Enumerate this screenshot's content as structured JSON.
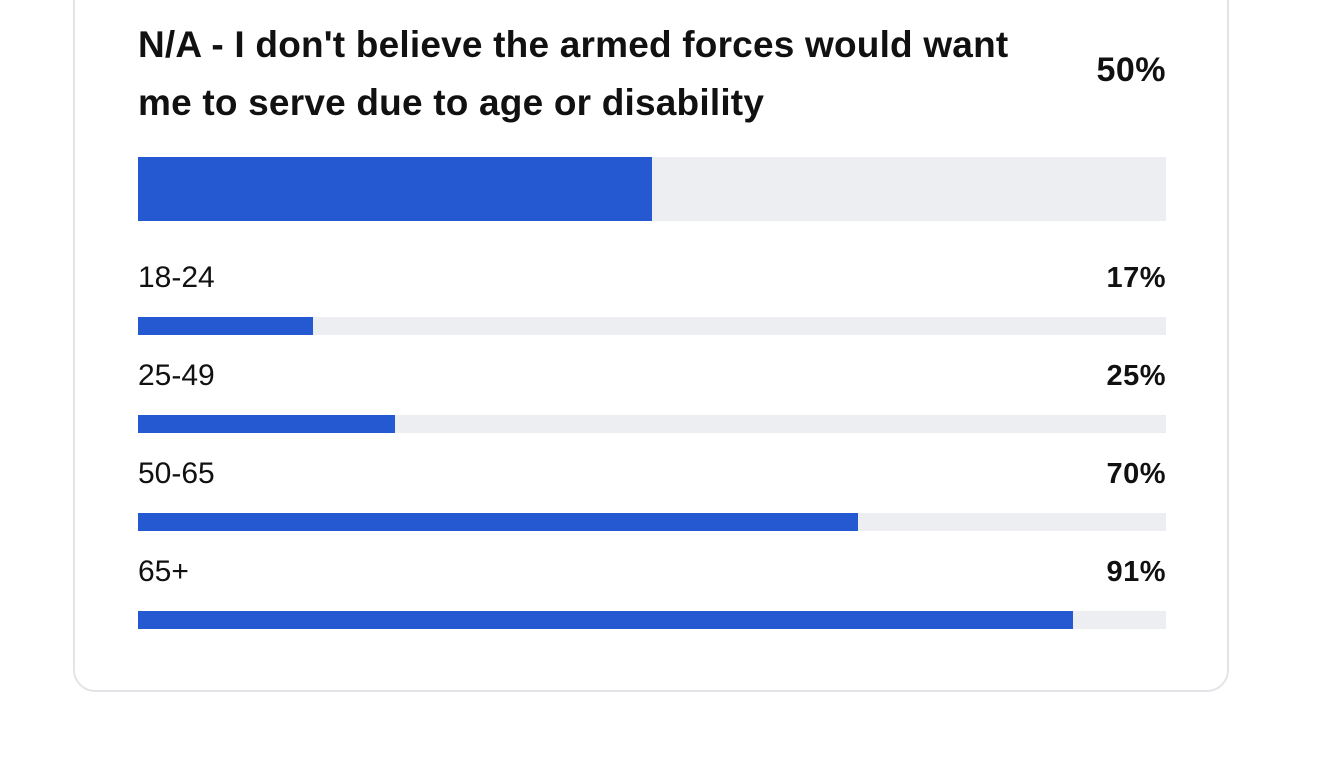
{
  "main": {
    "title": "N/A - I don't believe the armed forces would want me to serve due to age or disability",
    "percent_label": "50%",
    "value": 50
  },
  "colors": {
    "bar_fill": "#2559d1",
    "bar_track": "#edeef2"
  },
  "breakdown": [
    {
      "label": "18-24",
      "percent_label": "17%",
      "value": 17
    },
    {
      "label": "25-49",
      "percent_label": "25%",
      "value": 25
    },
    {
      "label": "50-65",
      "percent_label": "70%",
      "value": 70
    },
    {
      "label": "65+",
      "percent_label": "91%",
      "value": 91
    }
  ]
}
